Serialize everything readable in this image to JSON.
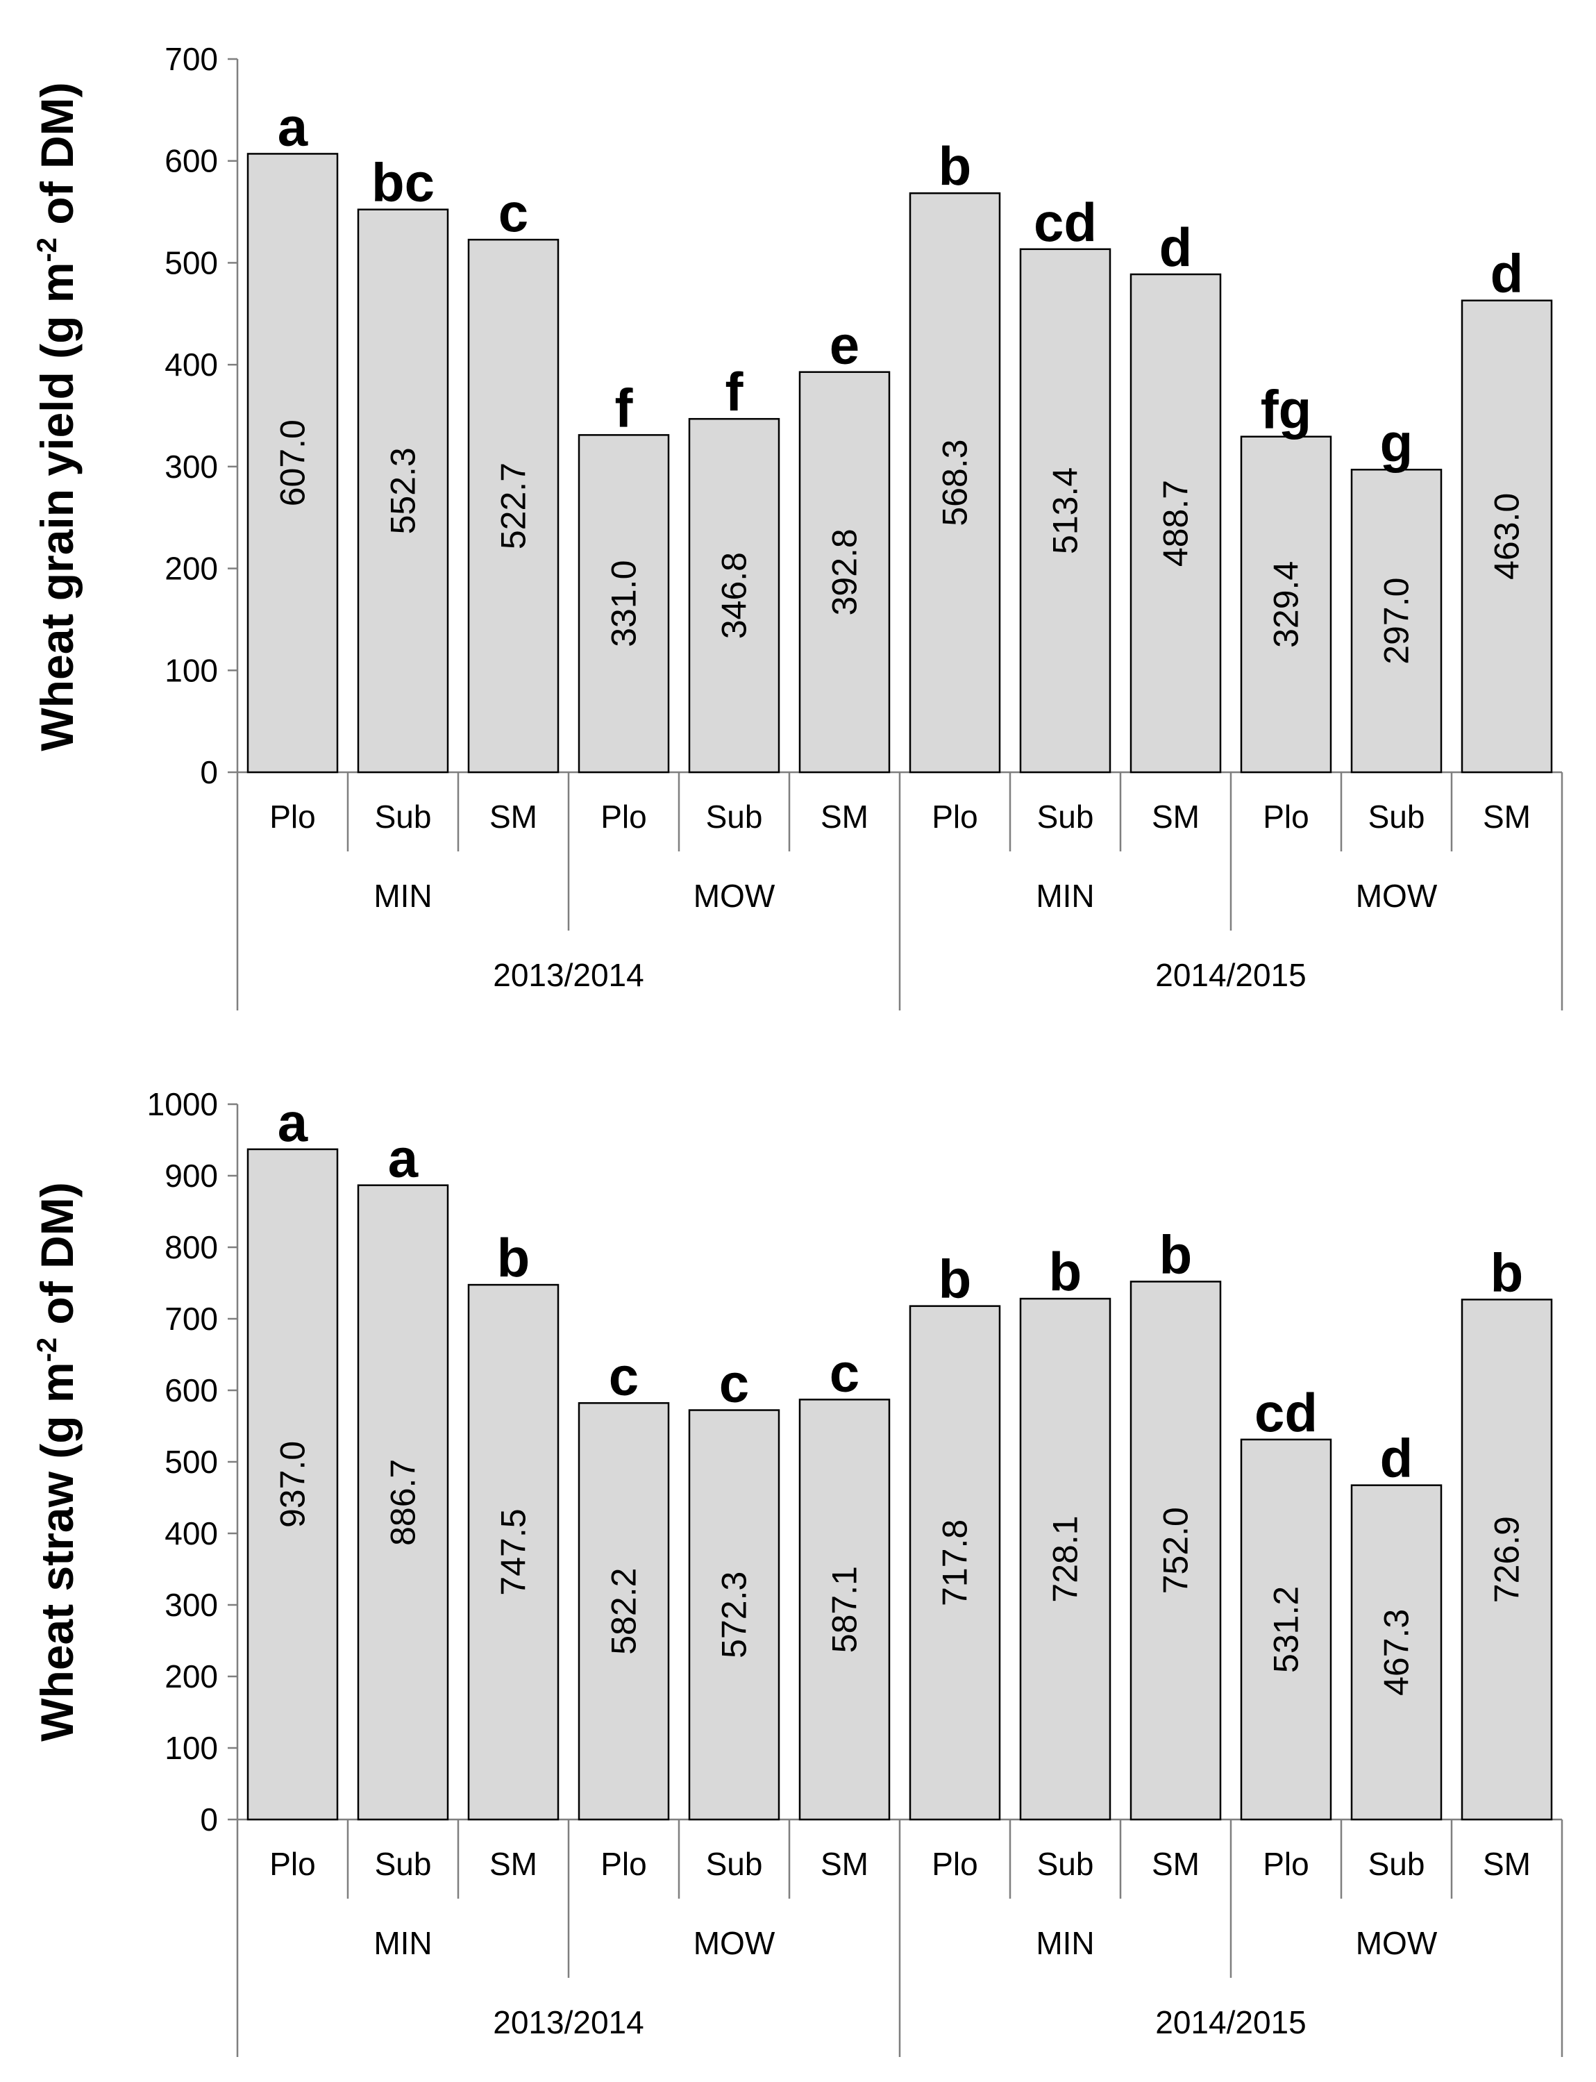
{
  "chart_data": [
    {
      "type": "bar",
      "title": "",
      "ylabel_main": "Wheat grain yield (g m",
      "ylabel_sup": "-2",
      "ylabel_end": " of DM)",
      "ylim": [
        0,
        700
      ],
      "yticks": [
        0,
        100,
        200,
        300,
        400,
        500,
        600,
        700
      ],
      "seasons": [
        "2013/2014",
        "2014/2015"
      ],
      "systems": [
        "MIN",
        "MOW"
      ],
      "categories": [
        "Plo",
        "Sub",
        "SM",
        "Plo",
        "Sub",
        "SM",
        "Plo",
        "Sub",
        "SM",
        "Plo",
        "Sub",
        "SM"
      ],
      "values": [
        607.0,
        552.3,
        522.7,
        331.0,
        346.8,
        392.8,
        568.3,
        513.4,
        488.7,
        329.4,
        297.0,
        463.0
      ],
      "value_labels": [
        "607.0",
        "552.3",
        "522.7",
        "331.0",
        "346.8",
        "392.8",
        "568.3",
        "513.4",
        "488.7",
        "329.4",
        "297.0",
        "463.0"
      ],
      "letters": [
        "a",
        "bc",
        "c",
        "f",
        "f",
        "e",
        "b",
        "cd",
        "d",
        "fg",
        "g",
        "d"
      ]
    },
    {
      "type": "bar",
      "title": "",
      "ylabel_main": "Wheat straw (g m",
      "ylabel_sup": "-2",
      "ylabel_end": " of DM)",
      "ylim": [
        0,
        1000
      ],
      "yticks": [
        0,
        100,
        200,
        300,
        400,
        500,
        600,
        700,
        800,
        900,
        1000
      ],
      "seasons": [
        "2013/2014",
        "2014/2015"
      ],
      "systems": [
        "MIN",
        "MOW"
      ],
      "categories": [
        "Plo",
        "Sub",
        "SM",
        "Plo",
        "Sub",
        "SM",
        "Plo",
        "Sub",
        "SM",
        "Plo",
        "Sub",
        "SM"
      ],
      "values": [
        937.0,
        886.7,
        747.5,
        582.2,
        572.3,
        587.1,
        717.8,
        728.1,
        752.0,
        531.2,
        467.3,
        726.9
      ],
      "value_labels": [
        "937.0",
        "886.7",
        "747.5",
        "582.2",
        "572.3",
        "587.1",
        "717.8",
        "728.1",
        "752.0",
        "531.2",
        "467.3",
        "726.9"
      ],
      "letters": [
        "a",
        "a",
        "b",
        "c",
        "c",
        "c",
        "b",
        "b",
        "b",
        "cd",
        "d",
        "b"
      ]
    }
  ],
  "colors": {
    "bar_fill": "#d9d9d9",
    "bar_stroke": "#000000",
    "axis": "#7f7f7f"
  }
}
